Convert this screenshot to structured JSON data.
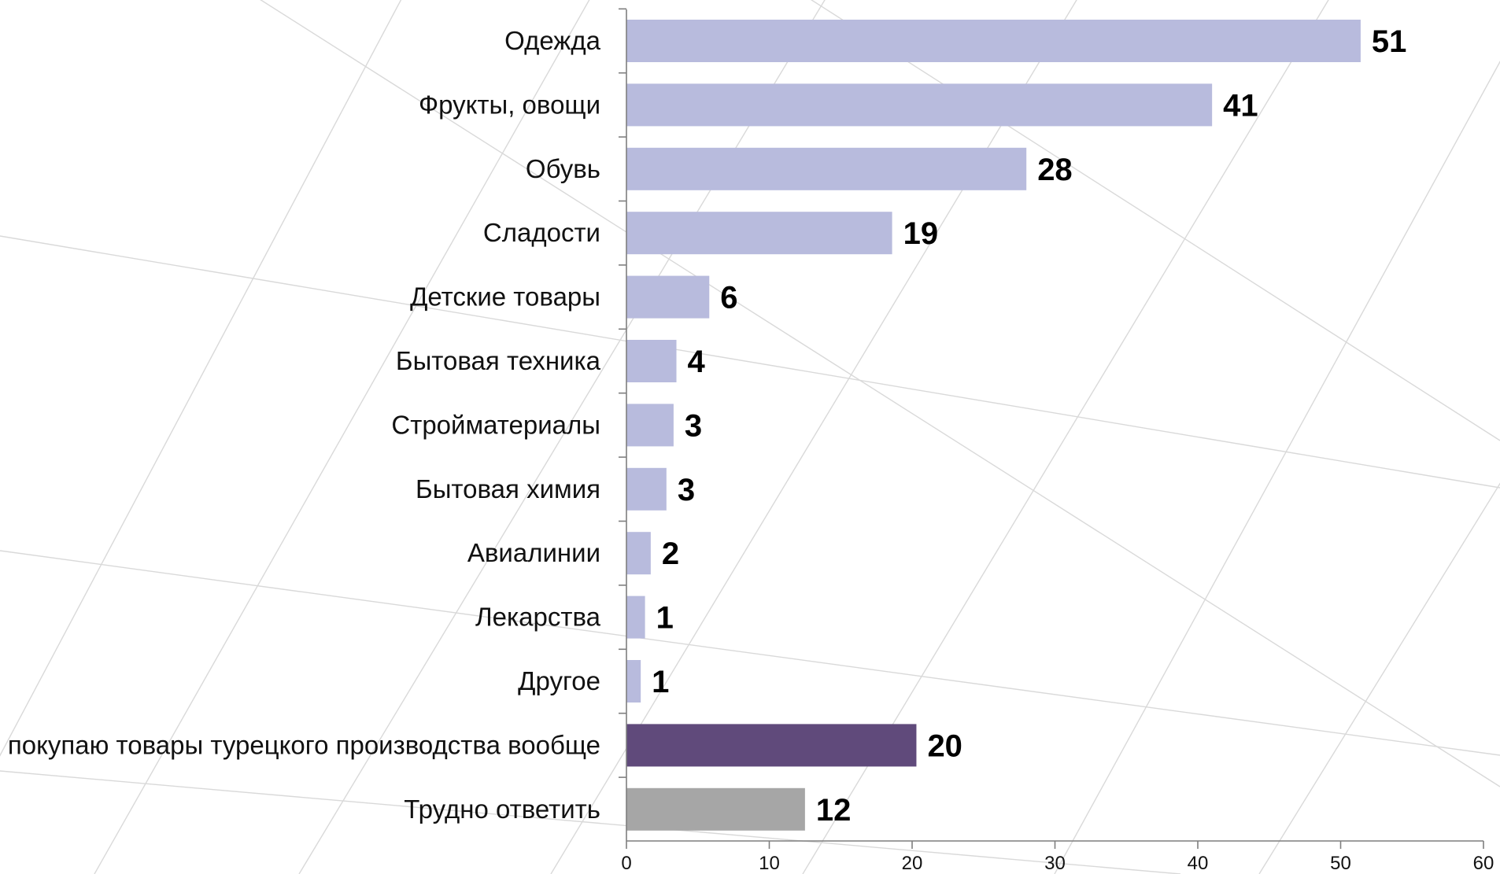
{
  "chart_data": {
    "type": "bar",
    "orientation": "horizontal",
    "title": "",
    "xlabel": "",
    "ylabel": "",
    "xlim": [
      0,
      60
    ],
    "xticks": [
      0,
      10,
      20,
      30,
      40,
      50,
      60
    ],
    "grid": false,
    "legend": "none",
    "categories": [
      "Одежда",
      "Фрукты, овощи",
      "Обувь",
      "Сладости",
      "Детские товары",
      "Бытовая техника",
      "Стройматериалы",
      "Бытовая химия",
      "Авиалинии",
      "Лекарства",
      "Другое",
      "Не покупаю товары турецкого производства вообще",
      "Трудно ответить"
    ],
    "values": [
      51.4,
      41,
      28,
      18.6,
      5.8,
      3.5,
      3.3,
      2.8,
      1.7,
      1.3,
      1,
      20.3,
      12.5
    ],
    "data_labels": [
      "51",
      "41",
      "28",
      "19",
      "6",
      "4",
      "3",
      "3",
      "2",
      "1",
      "1",
      "20",
      "12"
    ],
    "colors": [
      "#b8bbdd",
      "#b8bbdd",
      "#b8bbdd",
      "#b8bbdd",
      "#b8bbdd",
      "#b8bbdd",
      "#b8bbdd",
      "#b8bbdd",
      "#b8bbdd",
      "#b8bbdd",
      "#b8bbdd",
      "#604a7b",
      "#a6a6a6"
    ]
  }
}
